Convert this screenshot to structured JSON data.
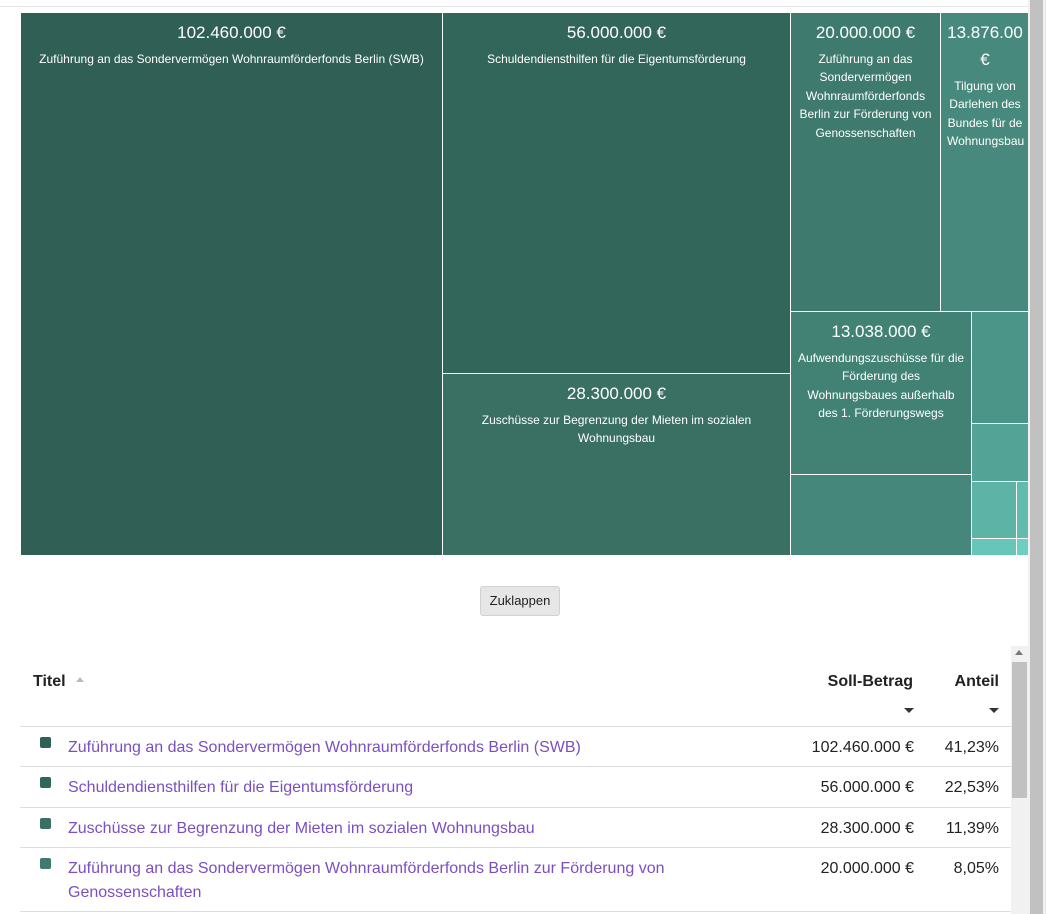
{
  "treemap": {
    "cells": [
      {
        "value": "102.460.000 €",
        "label": "Zuführung an das Sondervermögen Wohnraumförderfonds Berlin (SWB)"
      },
      {
        "value": "56.000.000 €",
        "label": "Schuldendiensthilfen für die Eigentumsförderung"
      },
      {
        "value": "28.300.000 €",
        "label": "Zuschüsse zur Begrenzung der Mieten im sozialen Wohnungsbau"
      },
      {
        "value": "20.000.000 €",
        "label": "Zuführung an das Sondervermögen Wohnraumförderfonds Berlin zur Förderung von Genossenschaften"
      },
      {
        "value": "13.876.00 €",
        "label": "Tilgung von Darlehen des Bundes für de Wohnungsbau"
      },
      {
        "value": "13.038.000 €",
        "label": "Aufwendungszuschüsse für die Förderung des Wohnungsbaues außerhalb des 1. Förderungswegs"
      }
    ]
  },
  "collapse_button": {
    "label": "Zuklappen"
  },
  "table": {
    "headers": {
      "title": "Titel",
      "amount": "Soll-Betrag",
      "share": "Anteil"
    },
    "rows": [
      {
        "name": "Zuführung an das Sondervermögen Wohnraumförderfonds Berlin (SWB)",
        "amount": "102.460.000 €",
        "share": "41,23%",
        "color": "#2f5f55"
      },
      {
        "name": "Schuldendiensthilfen für die Eigentumsförderung",
        "amount": "56.000.000 €",
        "share": "22,53%",
        "color": "#33665b"
      },
      {
        "name": "Zuschüsse zur Begrenzung der Mieten im sozialen Wohnungsbau",
        "amount": "28.300.000 €",
        "share": "11,39%",
        "color": "#3a6f64"
      },
      {
        "name": "Zuführung an das Sondervermögen Wohnraumförderfonds Berlin zur Förderung von Genossenschaften",
        "amount": "20.000.000 €",
        "share": "8,05%",
        "color": "#3f7a6e"
      }
    ]
  },
  "colors": {
    "link": "#7b4fc0",
    "border": "#dcdcdc"
  },
  "icons": {
    "sort_ascending": "sort-up-icon",
    "sort_descending": "sort-down-icon",
    "scroll_up": "scroll-up-arrow-icon"
  }
}
